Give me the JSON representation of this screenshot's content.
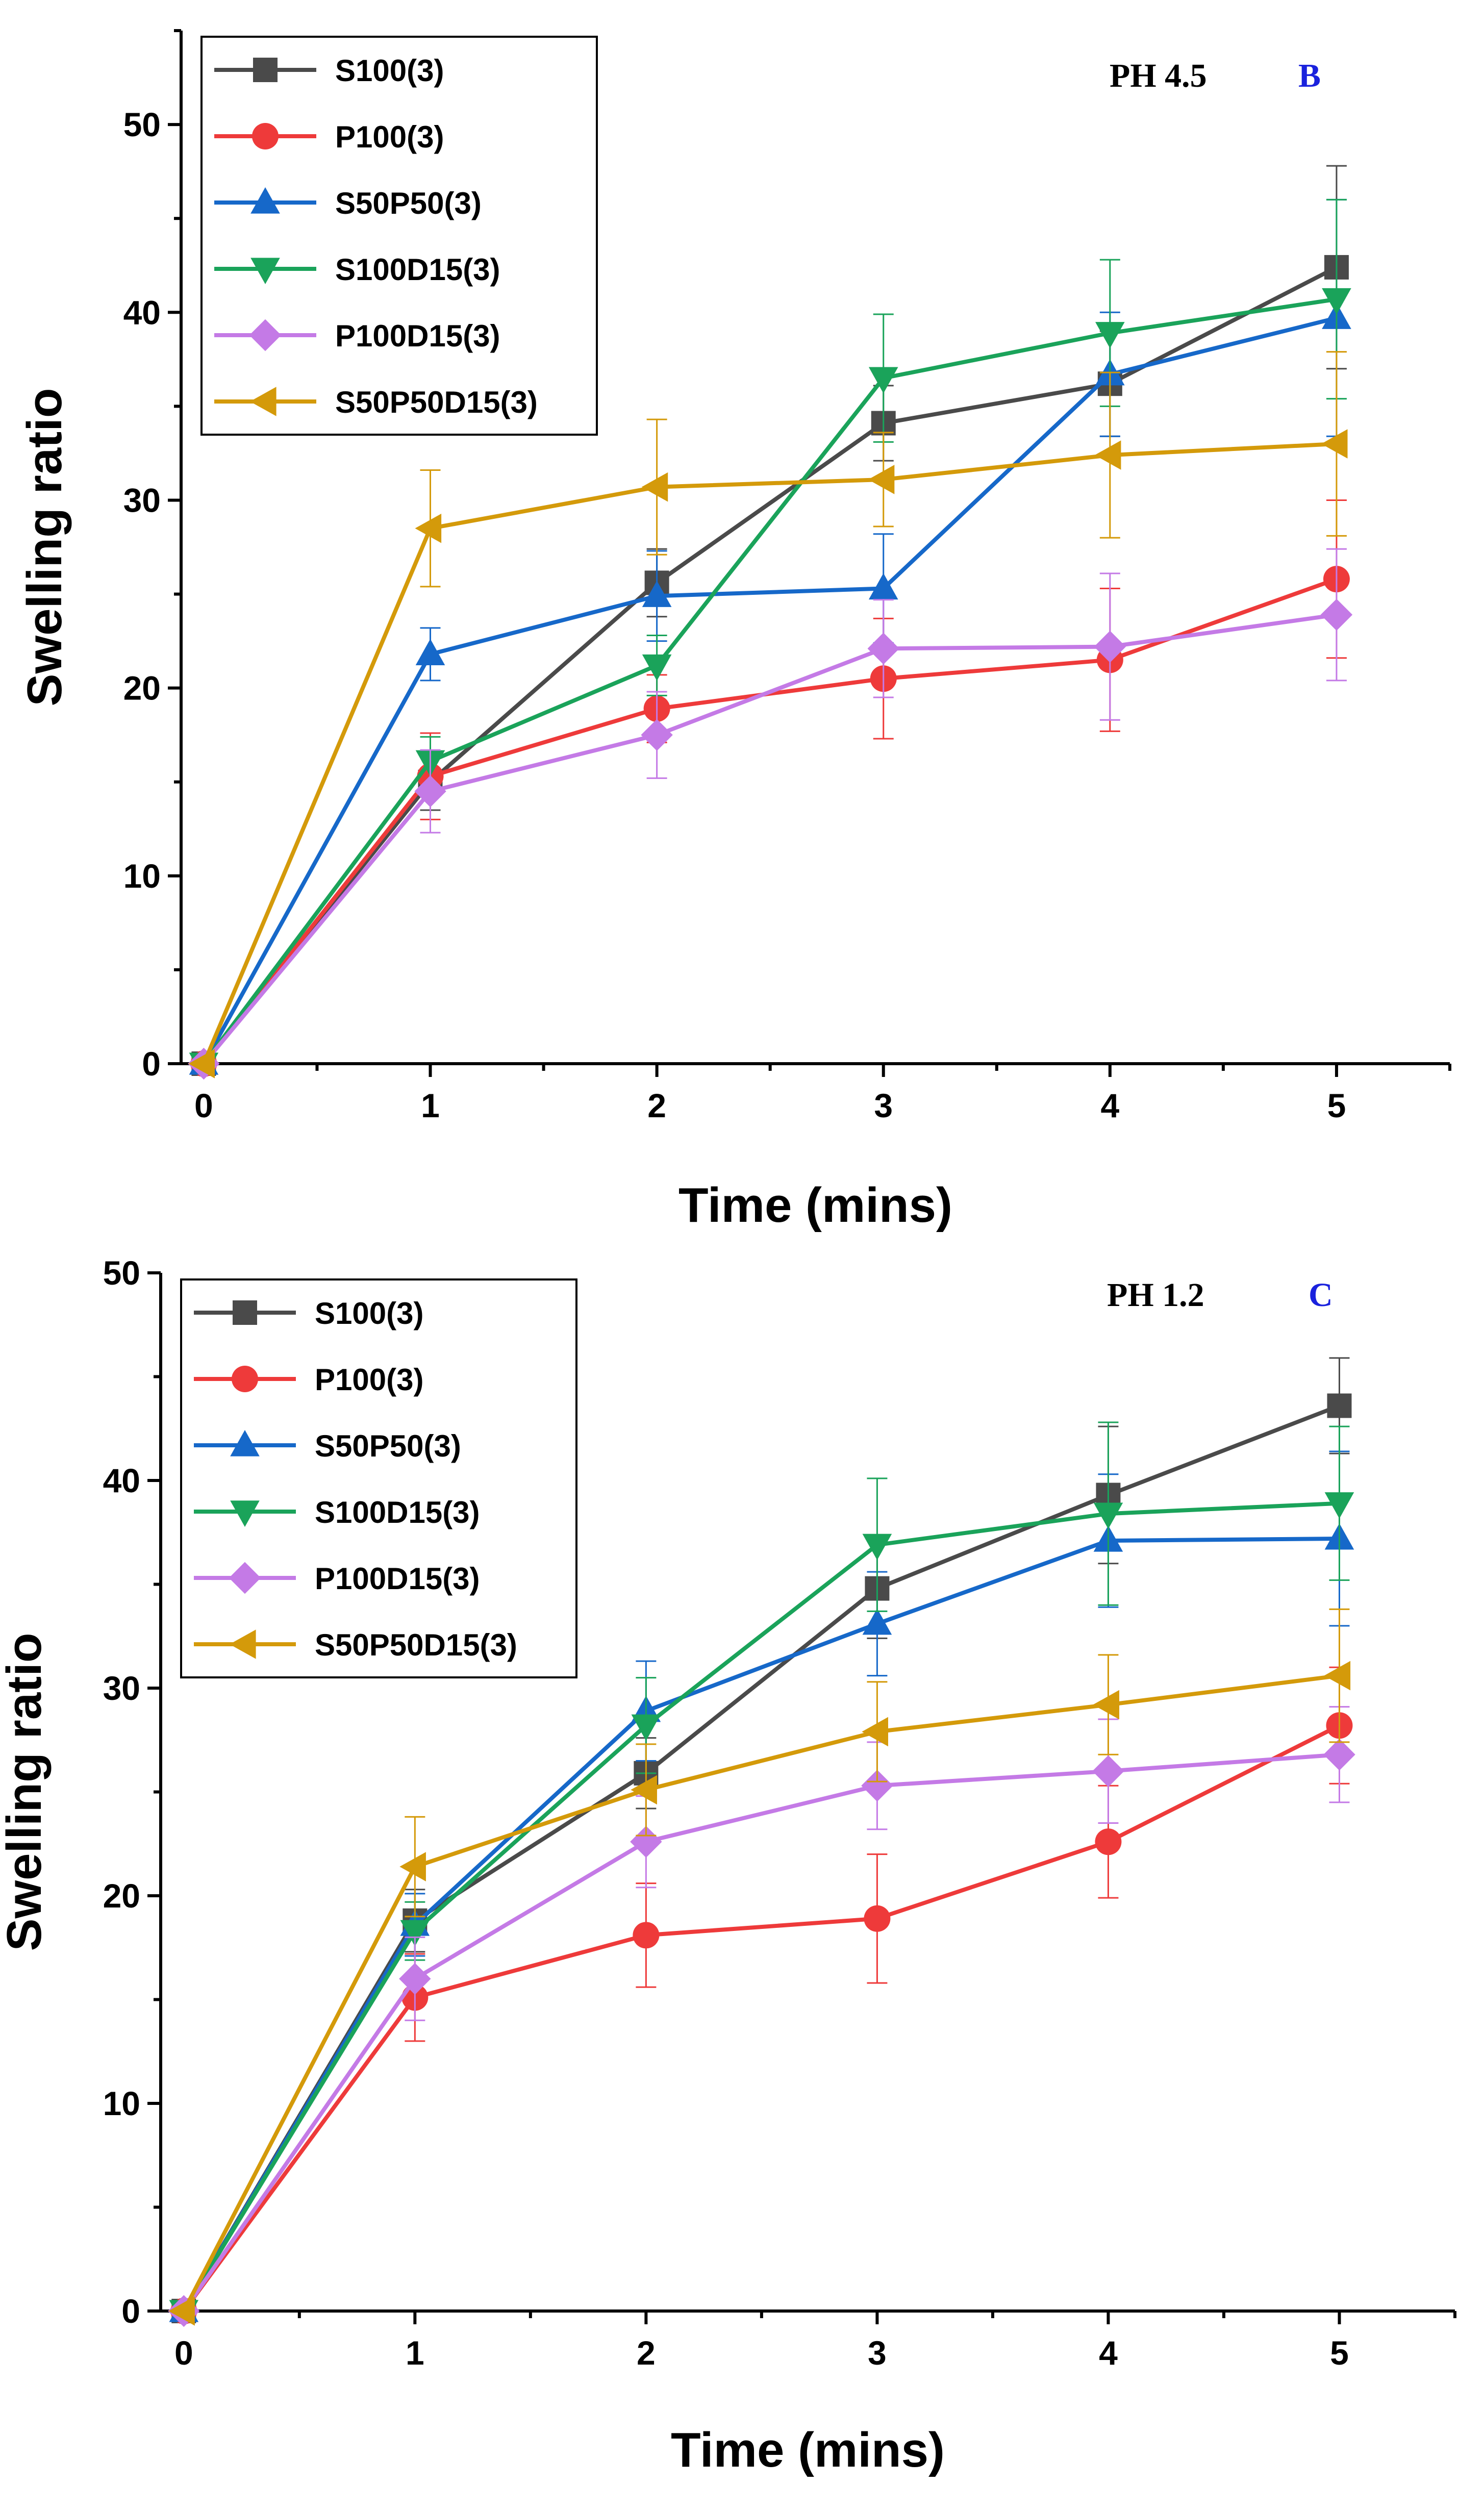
{
  "colors": {
    "S100(3)": "#4a4a4a",
    "P100(3)": "#ee3a3a",
    "S50P50(3)": "#1668c9",
    "S100D15(3)": "#1aa35a",
    "P100D15(3)": "#c47ae6",
    "S50P50D15(3)": "#d49a0a",
    "panel_letter": "#1a22dd"
  },
  "chart_data": [
    {
      "type": "line",
      "panel_letter": "B",
      "condition": "PH 4.5",
      "xlabel": "Time (mins)",
      "ylabel": "Swelling ratio",
      "xlim": [
        -0.1,
        5.5
      ],
      "ylim": [
        0,
        55
      ],
      "xticks": [
        0,
        1,
        2,
        3,
        4,
        5
      ],
      "yticks": [
        0,
        10,
        20,
        30,
        40,
        50
      ],
      "x": [
        0,
        1,
        2,
        3,
        4,
        5
      ],
      "legend_position": "top-left",
      "series": [
        {
          "name": "S100(3)",
          "marker": "square",
          "values": [
            0,
            15.0,
            25.6,
            34.1,
            36.2,
            42.4
          ],
          "errors": [
            0,
            1.5,
            1.8,
            2.0,
            2.8,
            5.4
          ]
        },
        {
          "name": "P100(3)",
          "marker": "circle",
          "values": [
            0,
            15.3,
            18.9,
            20.5,
            21.5,
            25.8
          ],
          "errors": [
            0,
            2.3,
            1.8,
            3.2,
            3.8,
            4.2
          ]
        },
        {
          "name": "S50P50(3)",
          "marker": "triangle-up",
          "values": [
            0,
            21.8,
            24.9,
            25.3,
            36.7,
            39.7
          ],
          "errors": [
            0,
            1.4,
            2.4,
            2.9,
            3.3,
            6.3
          ]
        },
        {
          "name": "S100D15(3)",
          "marker": "triangle-down",
          "values": [
            0,
            16.1,
            21.2,
            36.5,
            38.9,
            40.7
          ],
          "errors": [
            0,
            1.3,
            1.6,
            3.4,
            3.9,
            5.3
          ]
        },
        {
          "name": "P100D15(3)",
          "marker": "diamond",
          "values": [
            0,
            14.5,
            17.5,
            22.1,
            22.2,
            23.9
          ],
          "errors": [
            0,
            2.2,
            2.3,
            2.6,
            3.9,
            3.5
          ]
        },
        {
          "name": "S50P50D15(3)",
          "marker": "triangle-left",
          "values": [
            0,
            28.5,
            30.7,
            31.1,
            32.4,
            33.0
          ],
          "errors": [
            0,
            3.1,
            3.6,
            2.5,
            4.4,
            4.9
          ]
        }
      ]
    },
    {
      "type": "line",
      "panel_letter": "C",
      "condition": "PH 1.2",
      "xlabel": "Time (mins)",
      "ylabel": "Swelling ratio",
      "xlim": [
        -0.1,
        5.5
      ],
      "ylim": [
        0,
        50
      ],
      "xticks": [
        0,
        1,
        2,
        3,
        4,
        5
      ],
      "yticks": [
        0,
        10,
        20,
        30,
        40,
        50
      ],
      "x": [
        0,
        1,
        2,
        3,
        4,
        5
      ],
      "legend_position": "top-left",
      "series": [
        {
          "name": "S100(3)",
          "marker": "square",
          "values": [
            0,
            18.8,
            25.9,
            34.8,
            39.3,
            43.6
          ],
          "errors": [
            0,
            1.5,
            1.7,
            2.4,
            3.3,
            2.3
          ]
        },
        {
          "name": "P100(3)",
          "marker": "circle",
          "values": [
            0,
            15.1,
            18.1,
            18.9,
            22.6,
            28.2
          ],
          "errors": [
            0,
            2.1,
            2.5,
            3.1,
            2.7,
            2.8
          ]
        },
        {
          "name": "S50P50(3)",
          "marker": "triangle-up",
          "values": [
            0,
            18.6,
            28.9,
            33.1,
            37.1,
            37.2
          ],
          "errors": [
            0,
            1.5,
            2.4,
            2.5,
            3.2,
            4.2
          ]
        },
        {
          "name": "S100D15(3)",
          "marker": "triangle-down",
          "values": [
            0,
            18.3,
            28.2,
            36.9,
            38.4,
            38.9
          ],
          "errors": [
            0,
            1.4,
            2.3,
            3.2,
            4.4,
            3.7
          ]
        },
        {
          "name": "P100D15(3)",
          "marker": "diamond",
          "values": [
            0,
            16.0,
            22.6,
            25.3,
            26.0,
            26.8
          ],
          "errors": [
            0,
            2.0,
            2.2,
            2.1,
            2.5,
            2.3
          ]
        },
        {
          "name": "S50P50D15(3)",
          "marker": "triangle-left",
          "values": [
            0,
            21.4,
            25.1,
            27.9,
            29.2,
            30.6
          ],
          "errors": [
            0,
            2.4,
            2.2,
            2.4,
            2.4,
            3.2
          ]
        }
      ]
    }
  ]
}
